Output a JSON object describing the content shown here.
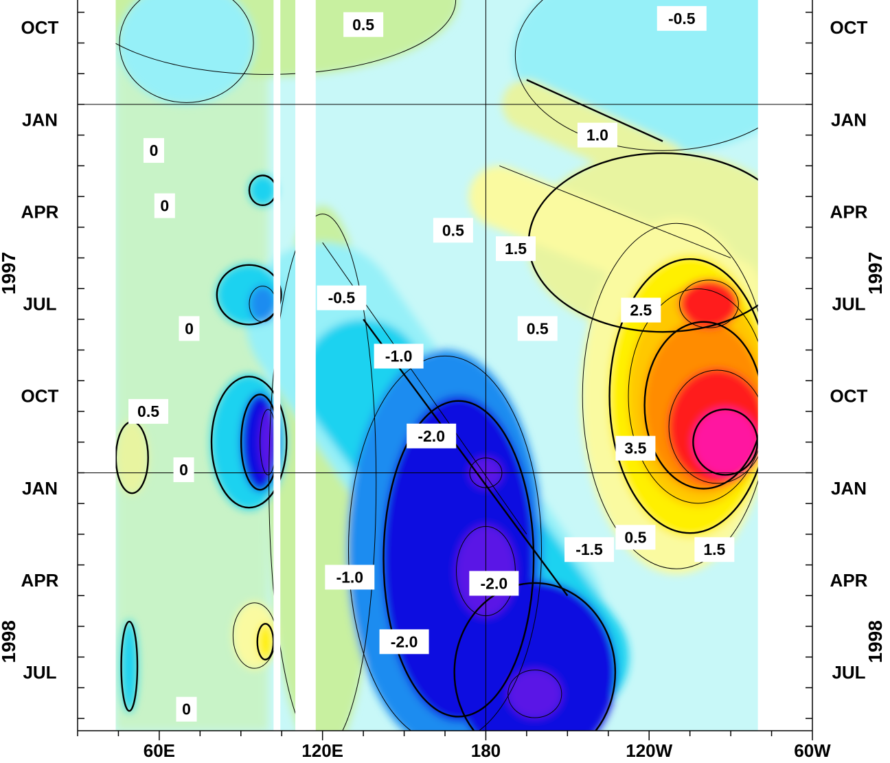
{
  "chart_data": {
    "type": "heatmap",
    "title": "",
    "xlabel": "",
    "ylabel": "",
    "x_axis": {
      "ticks": [
        {
          "label": "60E",
          "lon": 60
        },
        {
          "label": "120E",
          "lon": 120
        },
        {
          "label": "180",
          "lon": 180
        },
        {
          "label": "120W",
          "lon": 240
        },
        {
          "label": "60W",
          "lon": 300
        }
      ],
      "range_lon": [
        30,
        300
      ],
      "data_extent_lon": [
        44,
        280
      ]
    },
    "y_axis": {
      "range_month": [
        -3.4,
        20.4
      ],
      "month_ticks": [
        {
          "label": "OCT",
          "month": -2.5
        },
        {
          "label": "JAN",
          "month": 0.5
        },
        {
          "label": "APR",
          "month": 3.5
        },
        {
          "label": "JUL",
          "month": 6.5
        },
        {
          "label": "OCT",
          "month": 9.5
        },
        {
          "label": "JAN",
          "month": 12.5
        },
        {
          "label": "APR",
          "month": 15.5
        },
        {
          "label": "JUL",
          "month": 18.5
        }
      ],
      "year_labels": [
        {
          "label": "1997",
          "month": 5.5
        },
        {
          "label": "1998",
          "month": 17.5
        }
      ],
      "year_boundaries": [
        0,
        12
      ]
    },
    "grid": {
      "vertical_lon": [
        180
      ],
      "horizontal_month": [
        0,
        12
      ]
    },
    "missing_bands_lon": [
      [
        102,
        104.5
      ],
      [
        110,
        117.5
      ]
    ],
    "colorscale": [
      {
        "level": -2.5,
        "color": "#5a18e6"
      },
      {
        "level": -2.0,
        "color": "#0a10e0"
      },
      {
        "level": -1.5,
        "color": "#1e8cf0"
      },
      {
        "level": -1.0,
        "color": "#1ed2f0"
      },
      {
        "level": -0.5,
        "color": "#96f0f8"
      },
      {
        "level": 0.0,
        "color": "#c8f8f8"
      },
      {
        "level": 0.5,
        "color": "#c8f0a0"
      },
      {
        "level": 1.0,
        "color": "#e8f4a0"
      },
      {
        "level": 1.5,
        "color": "#fafaa0"
      },
      {
        "level": 2.0,
        "color": "#fff000"
      },
      {
        "level": 2.5,
        "color": "#ffc800"
      },
      {
        "level": 3.0,
        "color": "#ff8c00"
      },
      {
        "level": 3.5,
        "color": "#ff1e1e"
      },
      {
        "level": 4.0,
        "color": "#ff14a0"
      }
    ],
    "contour_labels": [
      {
        "text": "0.5",
        "lon": 135,
        "month": -2.6
      },
      {
        "text": "-0.5",
        "lon": 252,
        "month": -2.8
      },
      {
        "text": "1.0",
        "lon": 221,
        "month": 1.0
      },
      {
        "text": "0",
        "lon": 58,
        "month": 1.5
      },
      {
        "text": "0",
        "lon": 62,
        "month": 3.3
      },
      {
        "text": "0.5",
        "lon": 168,
        "month": 4.1
      },
      {
        "text": "1.5",
        "lon": 191,
        "month": 4.7
      },
      {
        "text": "-0.5",
        "lon": 127,
        "month": 6.3
      },
      {
        "text": "2.5",
        "lon": 237,
        "month": 6.7
      },
      {
        "text": "0",
        "lon": 71,
        "month": 7.3
      },
      {
        "text": "0.5",
        "lon": 199,
        "month": 7.3
      },
      {
        "text": "-1.0",
        "lon": 148,
        "month": 8.2
      },
      {
        "text": "0.5",
        "lon": 56,
        "month": 10.0
      },
      {
        "text": "-2.0",
        "lon": 160,
        "month": 10.8
      },
      {
        "text": "3.5",
        "lon": 235,
        "month": 11.2
      },
      {
        "text": "0",
        "lon": 69,
        "month": 11.9
      },
      {
        "text": "0.5",
        "lon": 235,
        "month": 14.1
      },
      {
        "text": "-1.5",
        "lon": 218,
        "month": 14.5
      },
      {
        "text": "1.5",
        "lon": 264,
        "month": 14.5
      },
      {
        "text": "-1.0",
        "lon": 130,
        "month": 15.4
      },
      {
        "text": "-2.0",
        "lon": 183,
        "month": 15.6
      },
      {
        "text": "-2.0",
        "lon": 150,
        "month": 17.5
      },
      {
        "text": "0",
        "lon": 70,
        "month": 19.7
      }
    ],
    "features": [
      {
        "kind": "region",
        "level": 0.5,
        "lon": 100,
        "month": -3.4,
        "rx": 70,
        "ry": 2.5
      },
      {
        "kind": "region",
        "level": -0.5,
        "lon": 245,
        "month": -1.6,
        "rx": 55,
        "ry": 3.2
      },
      {
        "kind": "region",
        "level": -0.5,
        "lon": 70,
        "month": -2.0,
        "rx": 25,
        "ry": 2.0
      },
      {
        "kind": "region",
        "level": 0.5,
        "lon": 120,
        "month": 12.3,
        "rx": 20,
        "ry": 9
      },
      {
        "kind": "band",
        "level": 1.0,
        "lon0": 195,
        "month0": 0.0,
        "lon1": 245,
        "month1": 2.0,
        "width": 1.6
      },
      {
        "kind": "band",
        "level": -0.5,
        "lon0": 120,
        "month0": 7.0,
        "lon1": 195,
        "month1": 16.5,
        "width": 5.0
      },
      {
        "kind": "band",
        "level": -1.0,
        "lon0": 135,
        "month0": 9.0,
        "lon1": 210,
        "month1": 18.0,
        "width": 4.0
      },
      {
        "kind": "region",
        "level": -1.5,
        "lon": 165,
        "month": 14.5,
        "rx": 36,
        "ry": 6.5
      },
      {
        "kind": "region",
        "level": -2.0,
        "lon": 170,
        "month": 14.8,
        "rx": 28,
        "ry": 5.3
      },
      {
        "kind": "region",
        "level": -2.0,
        "lon": 198,
        "month": 18.5,
        "rx": 30,
        "ry": 3.0
      },
      {
        "kind": "region",
        "level": -2.5,
        "lon": 180,
        "month": 12.0,
        "rx": 6,
        "ry": 0.5
      },
      {
        "kind": "region",
        "level": -2.5,
        "lon": 180,
        "month": 15.2,
        "rx": 11,
        "ry": 1.5
      },
      {
        "kind": "region",
        "level": -2.5,
        "lon": 198,
        "month": 19.2,
        "rx": 10,
        "ry": 0.8
      },
      {
        "kind": "region",
        "level": 1.0,
        "lon": 245,
        "month": 4.5,
        "rx": 50,
        "ry": 3.0
      },
      {
        "kind": "band",
        "level": 1.5,
        "lon0": 185,
        "month0": 3.0,
        "lon1": 270,
        "month1": 6.0,
        "width": 2.0
      },
      {
        "kind": "region",
        "level": 1.5,
        "lon": 250,
        "month": 9.5,
        "rx": 35,
        "ry": 5.8
      },
      {
        "kind": "region",
        "level": 2.0,
        "lon": 255,
        "month": 9.5,
        "rx": 30,
        "ry": 4.6
      },
      {
        "kind": "region",
        "level": 2.5,
        "lon": 258,
        "month": 9.5,
        "rx": 26,
        "ry": 3.6
      },
      {
        "kind": "region",
        "level": 3.0,
        "lon": 260,
        "month": 9.8,
        "rx": 22,
        "ry": 2.8
      },
      {
        "kind": "region",
        "level": 3.5,
        "lon": 265,
        "month": 10.5,
        "rx": 18,
        "ry": 1.9
      },
      {
        "kind": "region",
        "level": 4.0,
        "lon": 268,
        "month": 11.0,
        "rx": 12,
        "ry": 1.1
      },
      {
        "kind": "region",
        "level": 3.5,
        "lon": 262,
        "month": 6.5,
        "rx": 11,
        "ry": 0.8
      },
      {
        "kind": "region",
        "level": -1.0,
        "lon": 93,
        "month": 6.2,
        "rx": 12,
        "ry": 1.0
      },
      {
        "kind": "region",
        "level": -1.5,
        "lon": 98,
        "month": 6.5,
        "rx": 5,
        "ry": 0.6
      },
      {
        "kind": "region",
        "level": -1.0,
        "lon": 93,
        "month": 11.0,
        "rx": 14,
        "ry": 2.2
      },
      {
        "kind": "region",
        "level": -2.0,
        "lon": 97,
        "month": 11.0,
        "rx": 7,
        "ry": 1.6
      },
      {
        "kind": "region",
        "level": -2.5,
        "lon": 100,
        "month": 11.0,
        "rx": 3,
        "ry": 1.1
      },
      {
        "kind": "region",
        "level": -1.0,
        "lon": 98,
        "month": 2.8,
        "rx": 5,
        "ry": 0.5
      },
      {
        "kind": "region",
        "level": 1.5,
        "lon": 95,
        "month": 17.3,
        "rx": 8,
        "ry": 1.1
      },
      {
        "kind": "region",
        "level": 2.0,
        "lon": 99,
        "month": 17.5,
        "rx": 3,
        "ry": 0.6
      },
      {
        "kind": "region",
        "level": 1.0,
        "lon": 50,
        "month": 11.5,
        "rx": 6,
        "ry": 1.2
      },
      {
        "kind": "region",
        "level": -1.0,
        "lon": 49,
        "month": 18.3,
        "rx": 3,
        "ry": 1.5
      }
    ]
  }
}
